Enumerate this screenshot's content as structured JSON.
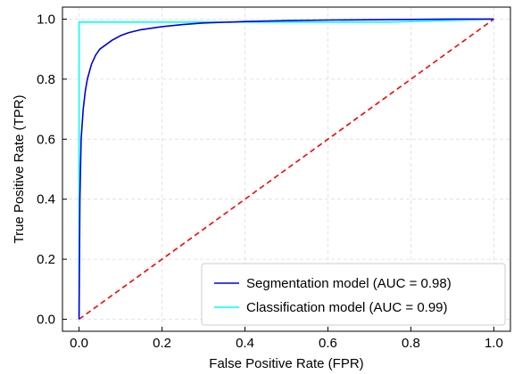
{
  "chart_data": {
    "type": "line",
    "title": "",
    "xlabel": "False Positive Rate (FPR)",
    "ylabel": "True Positive Rate (TPR)",
    "xlim": [
      -0.04,
      1.04
    ],
    "ylim": [
      -0.04,
      1.04
    ],
    "x_ticks": [
      0.0,
      0.2,
      0.4,
      0.6,
      0.8,
      1.0
    ],
    "y_ticks": [
      0.0,
      0.2,
      0.4,
      0.6,
      0.8,
      1.0
    ],
    "x_tick_labels": [
      "0.0",
      "0.2",
      "0.4",
      "0.6",
      "0.8",
      "1.0"
    ],
    "y_tick_labels": [
      "0.0",
      "0.2",
      "0.4",
      "0.6",
      "0.8",
      "1.0"
    ],
    "grid": true,
    "legend_position": "bottom-right",
    "series": [
      {
        "name": "Segmentation model (AUC = 0.98)",
        "color": "#0000dd",
        "style": "solid",
        "x": [
          0.0,
          0.002,
          0.005,
          0.01,
          0.015,
          0.02,
          0.03,
          0.04,
          0.05,
          0.06,
          0.08,
          0.1,
          0.12,
          0.15,
          0.2,
          0.25,
          0.3,
          0.4,
          0.5,
          0.6,
          0.7,
          0.8,
          0.9,
          1.0
        ],
        "y": [
          0.0,
          0.4,
          0.6,
          0.7,
          0.76,
          0.8,
          0.85,
          0.88,
          0.9,
          0.91,
          0.93,
          0.945,
          0.955,
          0.965,
          0.975,
          0.982,
          0.987,
          0.992,
          0.995,
          0.997,
          0.998,
          0.999,
          1.0,
          1.0
        ]
      },
      {
        "name": "Classification model (AUC = 0.99)",
        "color": "#00ffff",
        "style": "solid",
        "x": [
          0.0,
          0.0,
          0.75,
          1.0
        ],
        "y": [
          0.0,
          0.99,
          0.99,
          1.0
        ]
      },
      {
        "name": "",
        "color": "#ff0000",
        "style": "dashed",
        "x": [
          0.0,
          1.0
        ],
        "y": [
          0.0,
          1.0
        ]
      }
    ]
  }
}
